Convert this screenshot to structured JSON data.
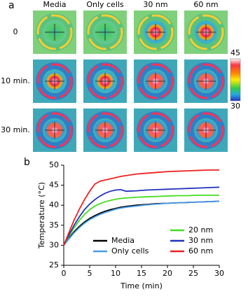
{
  "panel_a": {
    "label": "a",
    "columns": [
      "Media",
      "Only cells",
      "30 nm",
      "60 nm"
    ],
    "rows": [
      "0",
      "10 min.",
      "30 min."
    ],
    "colorbar_ticks": [
      45,
      30
    ]
  },
  "chart_data": {
    "type": "line",
    "label": "b",
    "xlabel": "Time (min)",
    "ylabel": "Temperature (°C)",
    "x": [
      0,
      1,
      2,
      3,
      4,
      5,
      6,
      7,
      8,
      9,
      10,
      11,
      12,
      14,
      16,
      18,
      20,
      22,
      24,
      26,
      28,
      30
    ],
    "series": [
      {
        "name": "Media",
        "color": "#000000",
        "values": [
          30,
          31.8,
          33.4,
          34.7,
          35.8,
          36.7,
          37.4,
          38.0,
          38.5,
          38.9,
          39.2,
          39.5,
          39.7,
          40.0,
          40.2,
          40.4,
          40.5,
          40.6,
          40.7,
          40.8,
          40.9,
          41.0
        ]
      },
      {
        "name": "Only cells",
        "color": "#4a9be8",
        "values": [
          30,
          31.6,
          33.1,
          34.4,
          35.5,
          36.4,
          37.1,
          37.7,
          38.2,
          38.6,
          39.0,
          39.3,
          39.5,
          39.8,
          40.1,
          40.3,
          40.5,
          40.6,
          40.7,
          40.8,
          40.9,
          41.0
        ]
      },
      {
        "name": "20 nm",
        "color": "#44dd22",
        "values": [
          30,
          32.3,
          34.4,
          36.2,
          37.7,
          38.9,
          39.8,
          40.4,
          40.9,
          41.2,
          41.5,
          41.7,
          41.8,
          42.0,
          42.1,
          42.2,
          42.3,
          42.4,
          42.4,
          42.5,
          42.5,
          42.5
        ]
      },
      {
        "name": "30 nm",
        "color": "#2233bb",
        "values": [
          30,
          32.6,
          35.0,
          37.1,
          38.9,
          40.3,
          41.4,
          42.3,
          43.0,
          43.5,
          43.8,
          43.9,
          43.5,
          43.6,
          43.8,
          43.9,
          44.0,
          44.1,
          44.2,
          44.3,
          44.4,
          44.5
        ]
      },
      {
        "name": "60 nm",
        "color": "#ee2222",
        "values": [
          30,
          33.2,
          36.3,
          39.0,
          41.4,
          43.5,
          45.3,
          46.0,
          46.3,
          46.6,
          46.9,
          47.2,
          47.4,
          47.8,
          48.0,
          48.2,
          48.4,
          48.5,
          48.6,
          48.7,
          48.8,
          48.8
        ]
      }
    ],
    "xlim": [
      0,
      30
    ],
    "xticks": [
      0,
      5,
      10,
      15,
      20,
      25,
      30
    ],
    "ylim": [
      25,
      50
    ],
    "yticks": [
      25,
      30,
      35,
      40,
      45,
      50
    ],
    "legend": "lower right",
    "grid": false
  }
}
